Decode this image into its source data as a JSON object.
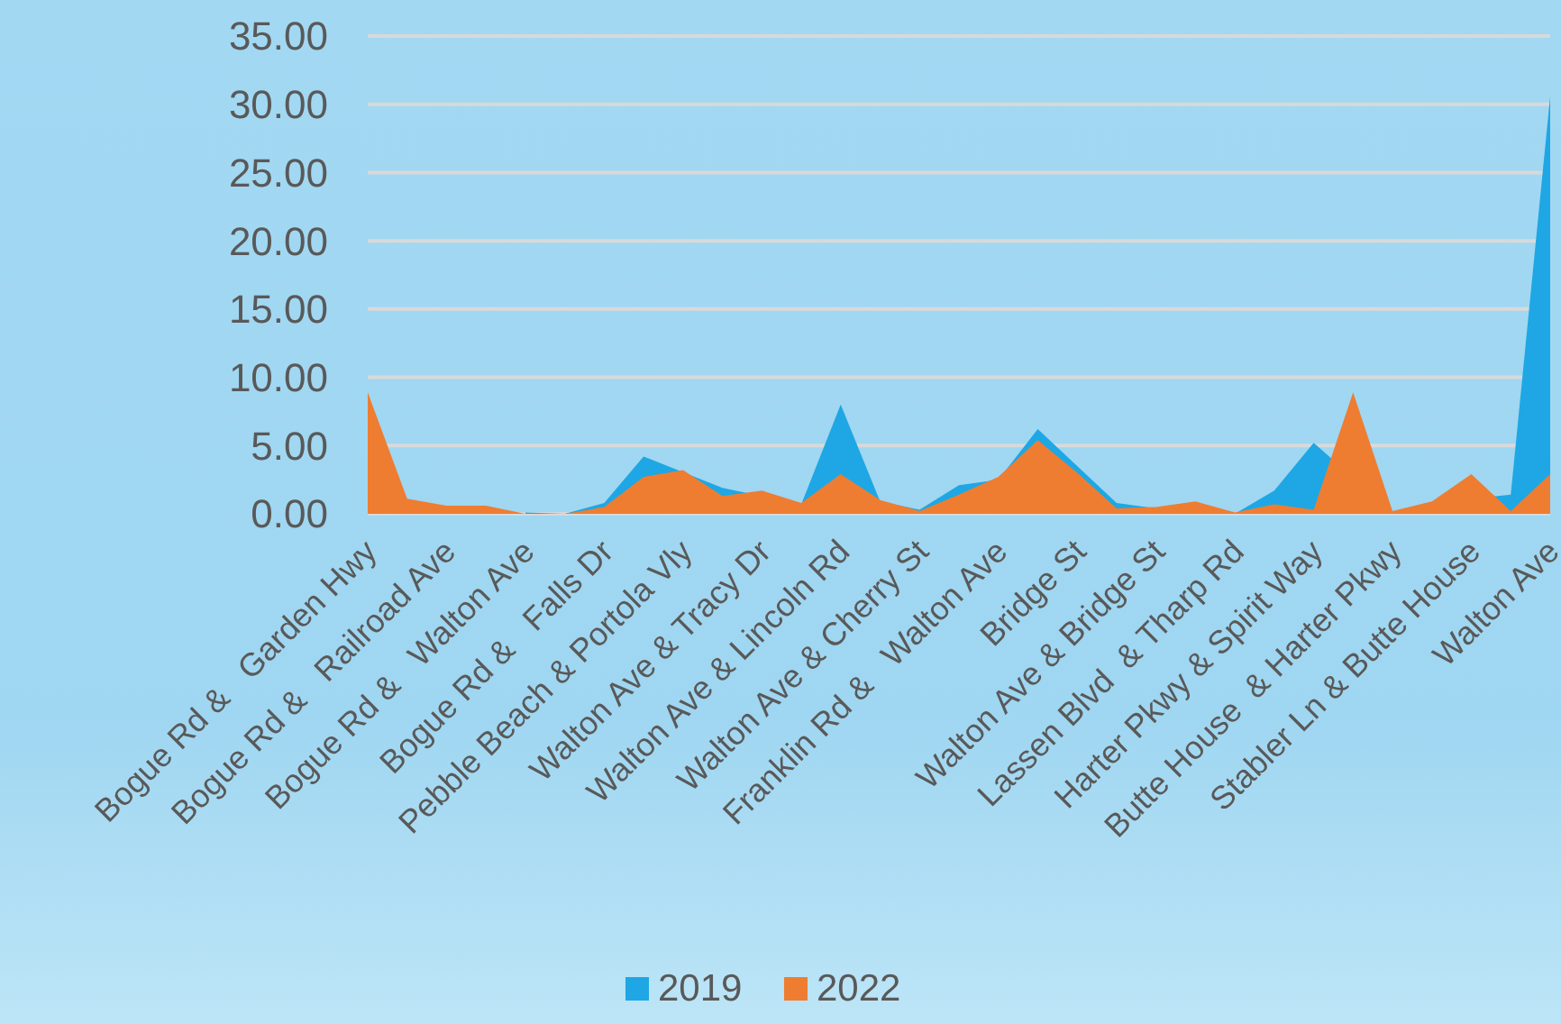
{
  "chart_data": {
    "type": "area",
    "categories": [
      "Bogue Rd &   Garden Hwy",
      null,
      "Bogue Rd &   Railroad Ave",
      null,
      "Bogue Rd &   Walton Ave",
      null,
      "Bogue Rd &   Falls Dr",
      null,
      "Pebble Beach & Portola Vly",
      null,
      "Walton Ave & Tracy Dr",
      null,
      "Walton Ave & Lincoln Rd",
      null,
      "Walton Ave & Cherry St",
      null,
      "Franklin Rd &   Walton Ave",
      null,
      "Bridge St",
      null,
      "Walton Ave & Bridge St",
      null,
      "Lassen Blvd  & Tharp Rd",
      null,
      "Harter Pkwy & Spirit Way",
      null,
      "Butte House  & Harter Pkwy",
      null,
      "Stabler Ln & Butte House",
      null,
      "Walton Ave"
    ],
    "series": [
      {
        "name": "2019",
        "color": "#1ea7e4",
        "values": [
          null,
          null,
          null,
          null,
          0.1,
          0,
          0.8,
          4.2,
          null,
          1.9,
          null,
          0.7,
          8.0,
          0.9,
          0.3,
          2.1,
          2.5,
          6.2,
          null,
          0.8,
          0.4,
          null,
          0,
          1.7,
          5.2,
          null,
          0.1,
          0.8,
          null,
          1.4,
          30.6
        ]
      },
      {
        "name": "2022",
        "color": "#ee7d31",
        "values": [
          8.9,
          1.1,
          0.6,
          0.6,
          0,
          0,
          0.5,
          2.7,
          3.2,
          1.3,
          1.7,
          0.8,
          2.9,
          1.0,
          0.2,
          1.4,
          2.7,
          5.4,
          3.0,
          0.4,
          0.5,
          0.9,
          0.1,
          0.7,
          0.3,
          8.9,
          0.2,
          0.9,
          2.9,
          0.2,
          2.9
        ]
      }
    ],
    "ylim": [
      0,
      35
    ],
    "yticks": [
      {
        "value": 0,
        "label": "0.00"
      },
      {
        "value": 5,
        "label": "5.00"
      },
      {
        "value": 10,
        "label": "10.00"
      },
      {
        "value": 15,
        "label": "15.00"
      },
      {
        "value": 20,
        "label": "20.00"
      },
      {
        "value": 25,
        "label": "25.00"
      },
      {
        "value": 30,
        "label": "30.00"
      },
      {
        "value": 35,
        "label": "35.00"
      }
    ],
    "grid": "y",
    "legend": "bottom"
  }
}
